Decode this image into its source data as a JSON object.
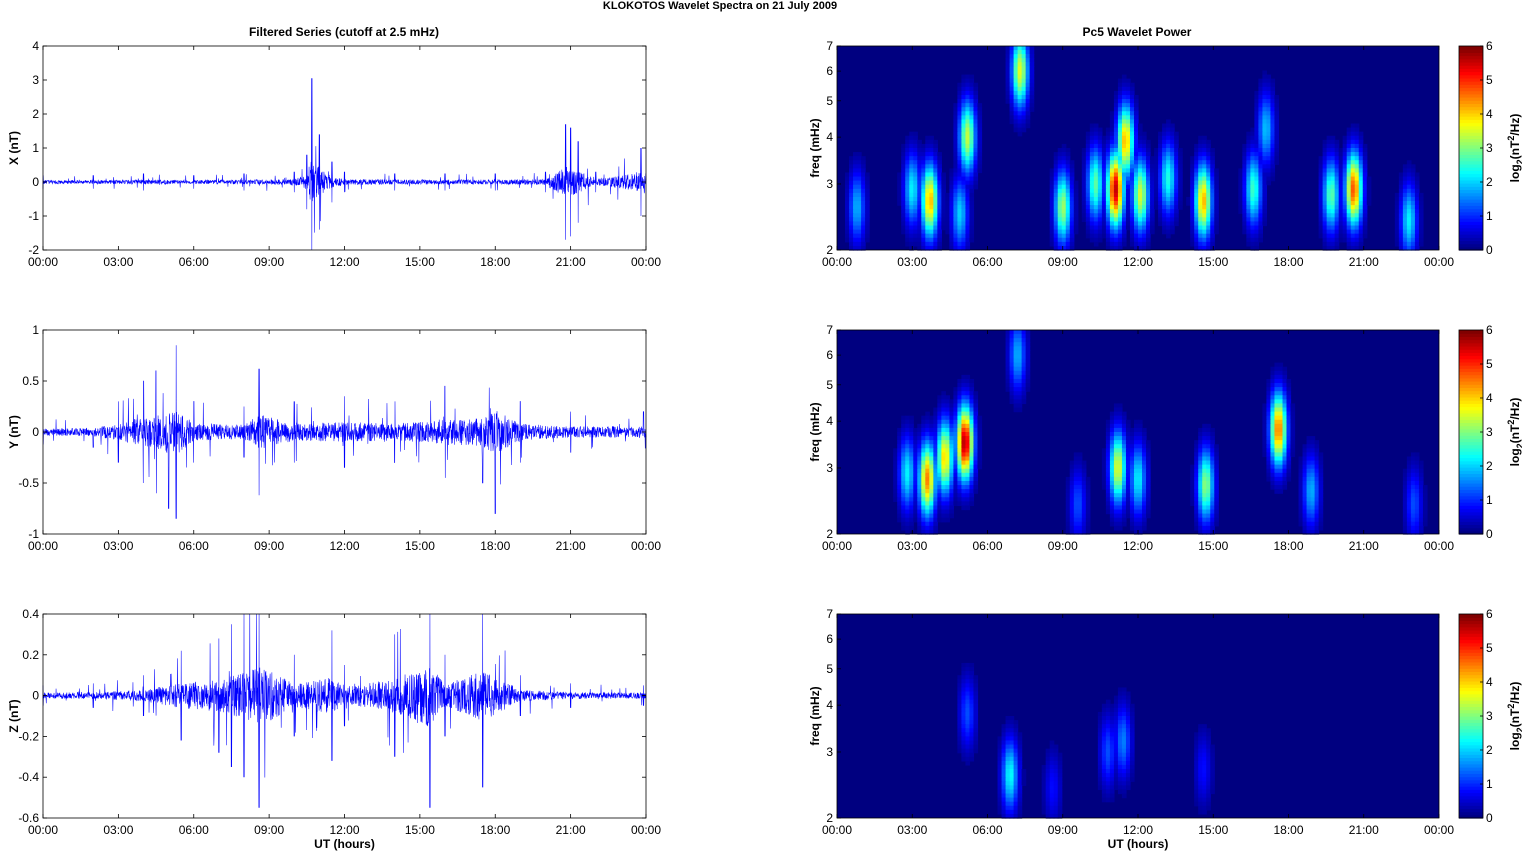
{
  "figure": {
    "suptitle": "KLOKOTOS Wavelet Spectra on 21 July      2009",
    "left_title": "Filtered Series (cutoff at 2.5 mHz)",
    "right_title": "Pc5 Wavelet Power",
    "x_axis_label": "UT (hours)",
    "time_ticks": [
      "00:00",
      "03:00",
      "06:00",
      "09:00",
      "12:00",
      "15:00",
      "18:00",
      "21:00",
      "00:00"
    ],
    "freq_axis_label": "freq (mHz)",
    "freq_ticks": [
      "2",
      "3",
      "4",
      "5",
      "6",
      "7"
    ],
    "colorbar_label": "log2(nT2/Hz)",
    "colorbar_label_parts": [
      "log",
      "2",
      "(nT",
      "2",
      "/Hz)"
    ],
    "colorbar_ticks": [
      "0",
      "1",
      "2",
      "3",
      "4",
      "5",
      "6"
    ],
    "colors": {
      "series_line": "#0000ff",
      "colormap": "jet",
      "background": "#ffffff",
      "axes": "#000000"
    }
  },
  "chart_data": [
    {
      "type": "line",
      "panel": "filtered-x",
      "ylabel": "X (nT)",
      "xlabel": "",
      "xlim": [
        0,
        24
      ],
      "ylim": [
        -2,
        4
      ],
      "yticks": [
        "-2",
        "-1",
        "0",
        "1",
        "2",
        "3",
        "4"
      ],
      "series": [
        {
          "x": [
            0,
            2,
            4,
            6,
            8,
            10,
            10.5,
            10.7,
            11,
            11.5,
            12,
            14,
            16,
            18,
            20,
            20.8,
            21,
            21.3,
            22,
            23.8
          ],
          "y_amplitude": [
            0.2,
            0.2,
            0.25,
            0.2,
            0.25,
            0.3,
            0.8,
            3.05,
            1.4,
            0.6,
            0.3,
            0.25,
            0.25,
            0.25,
            0.3,
            1.7,
            1.6,
            1.2,
            0.3,
            1.0
          ]
        }
      ]
    },
    {
      "type": "line",
      "panel": "filtered-y",
      "ylabel": "Y (nT)",
      "xlabel": "",
      "xlim": [
        0,
        24
      ],
      "ylim": [
        -1,
        1
      ],
      "yticks": [
        "-1",
        "-0.5",
        "0",
        "0.5",
        "1"
      ],
      "series": [
        {
          "x": [
            0,
            2,
            3,
            4,
            4.5,
            5,
            5.3,
            6,
            8,
            8.6,
            10,
            12,
            14,
            16,
            17.5,
            18,
            19,
            21,
            23.9
          ],
          "y_amplitude": [
            0.12,
            0.15,
            0.3,
            0.5,
            0.6,
            0.75,
            0.85,
            0.3,
            0.25,
            0.62,
            0.3,
            0.35,
            0.3,
            0.45,
            0.5,
            0.8,
            0.3,
            0.2,
            0.2
          ]
        }
      ]
    },
    {
      "type": "line",
      "panel": "filtered-z",
      "ylabel": "Z (nT)",
      "xlabel": "UT (hours)",
      "xlim": [
        0,
        24
      ],
      "ylim": [
        -0.6,
        0.4
      ],
      "yticks": [
        "-0.6",
        "-0.4",
        "-0.2",
        "0",
        "0.2",
        "0.4"
      ],
      "series": [
        {
          "x": [
            0,
            2,
            4,
            5.5,
            7,
            7.5,
            8,
            8.6,
            10,
            11.5,
            12,
            14,
            15.4,
            16,
            17.5,
            19,
            21,
            23.9
          ],
          "y_amplitude": [
            0.05,
            0.06,
            0.1,
            0.22,
            0.28,
            0.35,
            0.4,
            0.55,
            0.2,
            0.32,
            0.15,
            0.3,
            0.55,
            0.2,
            0.45,
            0.1,
            0.06,
            0.05
          ]
        }
      ]
    },
    {
      "type": "heatmap",
      "panel": "wavelet-x",
      "ylabel": "freq (mHz)",
      "xlabel": "",
      "xlim": [
        0,
        24
      ],
      "ylim": [
        2,
        7
      ],
      "y_scale": "log",
      "color_range": [
        0,
        6
      ],
      "blobs": [
        {
          "t": 0.8,
          "f": 2.6,
          "v": 1.8
        },
        {
          "t": 3.0,
          "f": 2.9,
          "v": 2.2
        },
        {
          "t": 3.7,
          "f": 2.7,
          "v": 4.2
        },
        {
          "t": 4.9,
          "f": 2.5,
          "v": 2.0
        },
        {
          "t": 5.2,
          "f": 4.0,
          "v": 3.4
        },
        {
          "t": 7.3,
          "f": 6.0,
          "v": 3.6
        },
        {
          "t": 9.0,
          "f": 2.6,
          "v": 3.2
        },
        {
          "t": 10.3,
          "f": 3.0,
          "v": 2.8
        },
        {
          "t": 11.1,
          "f": 2.9,
          "v": 5.6
        },
        {
          "t": 11.5,
          "f": 3.9,
          "v": 4.2
        },
        {
          "t": 12.1,
          "f": 2.8,
          "v": 3.5
        },
        {
          "t": 13.2,
          "f": 3.1,
          "v": 2.4
        },
        {
          "t": 14.6,
          "f": 2.7,
          "v": 4.2
        },
        {
          "t": 16.6,
          "f": 2.9,
          "v": 2.6
        },
        {
          "t": 17.1,
          "f": 4.2,
          "v": 1.9
        },
        {
          "t": 19.7,
          "f": 2.8,
          "v": 2.8
        },
        {
          "t": 20.6,
          "f": 2.9,
          "v": 4.8
        },
        {
          "t": 22.8,
          "f": 2.4,
          "v": 2.2
        }
      ]
    },
    {
      "type": "heatmap",
      "panel": "wavelet-y",
      "ylabel": "freq (mHz)",
      "xlabel": "",
      "xlim": [
        0,
        24
      ],
      "ylim": [
        2,
        7
      ],
      "y_scale": "log",
      "color_range": [
        0,
        6
      ],
      "blobs": [
        {
          "t": 2.8,
          "f": 2.9,
          "v": 2.2
        },
        {
          "t": 3.6,
          "f": 2.8,
          "v": 4.5
        },
        {
          "t": 4.3,
          "f": 3.2,
          "v": 4.0
        },
        {
          "t": 5.1,
          "f": 3.5,
          "v": 5.8
        },
        {
          "t": 7.2,
          "f": 6.0,
          "v": 1.8
        },
        {
          "t": 9.6,
          "f": 2.4,
          "v": 1.2
        },
        {
          "t": 11.2,
          "f": 3.0,
          "v": 3.6
        },
        {
          "t": 12.0,
          "f": 2.8,
          "v": 2.2
        },
        {
          "t": 14.7,
          "f": 2.7,
          "v": 3.1
        },
        {
          "t": 17.6,
          "f": 3.8,
          "v": 4.6
        },
        {
          "t": 18.9,
          "f": 2.6,
          "v": 1.8
        },
        {
          "t": 23.0,
          "f": 2.4,
          "v": 1.2
        }
      ]
    },
    {
      "type": "heatmap",
      "panel": "wavelet-z",
      "ylabel": "freq (mHz)",
      "xlabel": "UT (hours)",
      "xlim": [
        0,
        24
      ],
      "ylim": [
        2,
        7
      ],
      "y_scale": "log",
      "color_range": [
        0,
        6
      ],
      "blobs": [
        {
          "t": 5.2,
          "f": 3.8,
          "v": 1.2
        },
        {
          "t": 6.9,
          "f": 2.6,
          "v": 2.3
        },
        {
          "t": 8.6,
          "f": 2.4,
          "v": 0.8
        },
        {
          "t": 10.8,
          "f": 3.0,
          "v": 1.2
        },
        {
          "t": 11.4,
          "f": 3.2,
          "v": 1.5
        },
        {
          "t": 14.6,
          "f": 2.7,
          "v": 0.8
        }
      ]
    }
  ]
}
